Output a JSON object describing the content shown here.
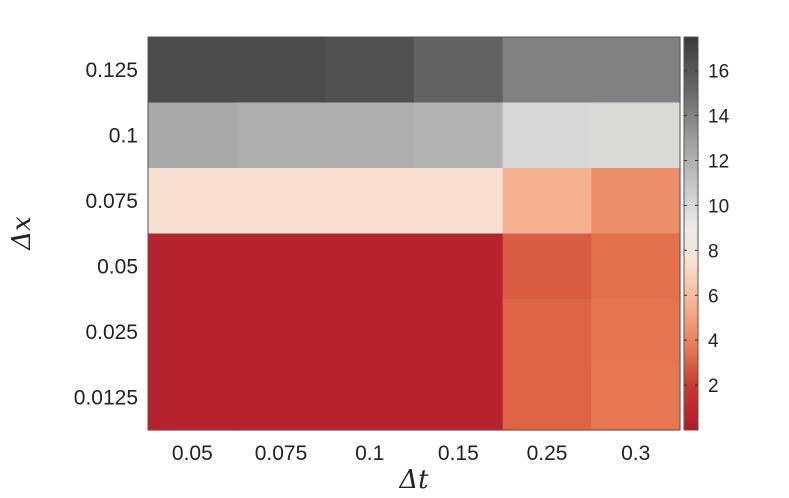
{
  "chart_data": {
    "type": "heatmap",
    "title": "",
    "xlabel": "Δt",
    "ylabel": "Δx",
    "x_categories": [
      "0.05",
      "0.075",
      "0.1",
      "0.15",
      "0.25",
      "0.3"
    ],
    "y_categories": [
      "0.125",
      "0.1",
      "0.075",
      "0.05",
      "0.025",
      "0.0125"
    ],
    "values": [
      [
        16.6,
        16.6,
        16.3,
        15.4,
        14.1,
        14.1
      ],
      [
        12.4,
        12.1,
        12.1,
        11.9,
        10.0,
        9.9
      ],
      [
        7.5,
        7.5,
        7.4,
        7.5,
        5.5,
        4.3
      ],
      [
        0.5,
        0.5,
        0.5,
        0.5,
        2.9,
        3.4
      ],
      [
        0.5,
        0.5,
        0.5,
        0.5,
        3.1,
        3.5
      ],
      [
        0.5,
        0.5,
        0.5,
        0.5,
        3.1,
        3.6
      ]
    ],
    "colorbar": {
      "range": [
        0,
        17.5
      ],
      "ticks": [
        2,
        4,
        6,
        8,
        10,
        12,
        14,
        16
      ],
      "colormap": [
        {
          "v": 0.0,
          "c": "#b01a2c"
        },
        {
          "v": 2.0,
          "c": "#c83a30"
        },
        {
          "v": 3.5,
          "c": "#e5754e"
        },
        {
          "v": 5.5,
          "c": "#f5b090"
        },
        {
          "v": 7.5,
          "c": "#fae0d2"
        },
        {
          "v": 9.0,
          "c": "#ecebea"
        },
        {
          "v": 11.0,
          "c": "#c5c5c5"
        },
        {
          "v": 13.0,
          "c": "#9c9c9c"
        },
        {
          "v": 15.0,
          "c": "#6a6a6a"
        },
        {
          "v": 17.5,
          "c": "#3a3a3a"
        }
      ]
    }
  }
}
